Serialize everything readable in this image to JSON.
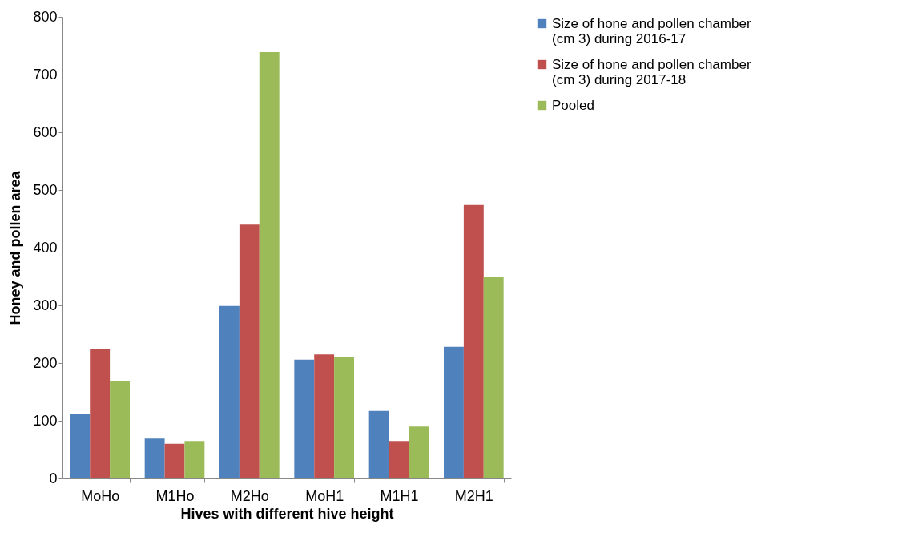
{
  "chart_data": {
    "type": "bar",
    "categories": [
      "MoHo",
      "M1Ho",
      "M2Ho",
      "MoH1",
      "M1H1",
      "M2H1"
    ],
    "series": [
      {
        "name": "Size of hone and pollen chamber (cm 3) during 2016-17",
        "color": "#4f81bd",
        "values": [
          111,
          69,
          299,
          206,
          117,
          228
        ]
      },
      {
        "name": "Size of hone and pollen chamber (cm 3) during 2017-18",
        "color": "#c0504d",
        "values": [
          225,
          60,
          440,
          215,
          65,
          474
        ]
      },
      {
        "name": "Pooled",
        "color": "#9bbb59",
        "values": [
          168,
          65,
          739,
          210,
          90,
          350
        ]
      }
    ],
    "xlabel": "Hives with different hive height",
    "ylabel": "Honey and pollen area",
    "ylim": [
      0,
      800
    ],
    "yticks": [
      0,
      100,
      200,
      300,
      400,
      500,
      600,
      700,
      800
    ],
    "grid": false,
    "legend": "right"
  }
}
